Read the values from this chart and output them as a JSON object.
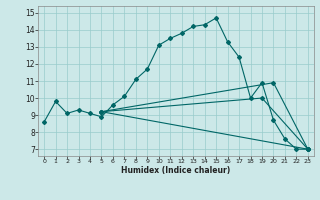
{
  "xlabel": "Humidex (Indice chaleur)",
  "background_color": "#cce8e8",
  "grid_color": "#99cccc",
  "line_color": "#006666",
  "xlim": [
    -0.5,
    23.5
  ],
  "ylim": [
    6.6,
    15.4
  ],
  "xticks": [
    0,
    1,
    2,
    3,
    4,
    5,
    6,
    7,
    8,
    9,
    10,
    11,
    12,
    13,
    14,
    15,
    16,
    17,
    18,
    19,
    20,
    21,
    22,
    23
  ],
  "yticks": [
    7,
    8,
    9,
    10,
    11,
    12,
    13,
    14,
    15
  ],
  "main_x": [
    0,
    1,
    2,
    3,
    4,
    5,
    6,
    7,
    8,
    9,
    10,
    11,
    12,
    13,
    14,
    15,
    16,
    17,
    18,
    19,
    20,
    21,
    22,
    23
  ],
  "main_y": [
    8.6,
    9.8,
    9.1,
    9.3,
    9.1,
    8.9,
    9.6,
    10.1,
    11.1,
    11.7,
    13.1,
    13.5,
    13.8,
    14.2,
    14.3,
    14.7,
    13.3,
    12.4,
    10.0,
    10.9,
    8.7,
    7.6,
    7.0,
    7.0
  ],
  "fan_lines": [
    {
      "x": [
        5,
        23
      ],
      "y": [
        9.2,
        7.0
      ]
    },
    {
      "x": [
        5,
        20,
        23
      ],
      "y": [
        9.2,
        10.9,
        7.0
      ]
    },
    {
      "x": [
        5,
        19,
        23
      ],
      "y": [
        9.2,
        10.0,
        7.0
      ]
    }
  ]
}
